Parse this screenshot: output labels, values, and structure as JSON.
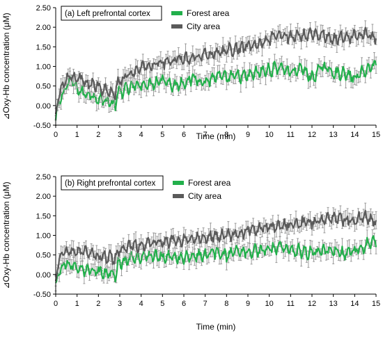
{
  "chart_data": [
    {
      "type": "line",
      "panel_label": "(a) Left prefrontal cortex",
      "xlabel": "Time (min)",
      "ylabel": "⊿Oxy-Hb concentration (μM)",
      "xlim": [
        0,
        15
      ],
      "ylim": [
        -0.5,
        2.5
      ],
      "x_ticks": [
        "0",
        "1",
        "2",
        "3",
        "4",
        "5",
        "6",
        "7",
        "8",
        "9",
        "10",
        "11",
        "12",
        "13",
        "14",
        "15"
      ],
      "y_ticks": [
        "-0.50",
        "0.00",
        "0.50",
        "1.00",
        "1.50",
        "2.00",
        "2.50"
      ],
      "grid": false,
      "legend_position": "top-center",
      "error_bars": true,
      "series": [
        {
          "name": "Forest area",
          "color": "#22b04b",
          "error_color": "#9a9a9a",
          "x": [
            0,
            0.1,
            0.3,
            0.5,
            0.7,
            1.0,
            1.3,
            1.6,
            1.9,
            2.2,
            2.5,
            2.8,
            2.9,
            3.2,
            3.5,
            4.0,
            4.5,
            5.0,
            5.5,
            6.0,
            6.5,
            7.0,
            7.5,
            8.0,
            8.5,
            9.0,
            9.5,
            10.0,
            10.5,
            11.0,
            11.5,
            12.0,
            12.5,
            13.0,
            13.5,
            14.0,
            14.5,
            15.0
          ],
          "y": [
            -0.4,
            0.0,
            0.25,
            0.5,
            0.65,
            0.45,
            0.3,
            0.3,
            0.2,
            0.15,
            0.1,
            0.0,
            0.3,
            0.4,
            0.45,
            0.55,
            0.55,
            0.7,
            0.5,
            0.6,
            0.7,
            0.6,
            0.75,
            0.7,
            0.75,
            0.75,
            0.85,
            0.9,
            1.0,
            0.85,
            0.95,
            0.7,
            1.0,
            0.85,
            0.8,
            0.7,
            0.9,
            1.05
          ]
        },
        {
          "name": "City area",
          "color": "#5a5a5a",
          "error_color": "#9a9a9a",
          "x": [
            0,
            0.1,
            0.3,
            0.5,
            0.7,
            1.0,
            1.3,
            1.6,
            1.9,
            2.2,
            2.5,
            2.8,
            2.9,
            3.2,
            3.5,
            4.0,
            4.5,
            5.0,
            5.5,
            6.0,
            6.5,
            7.0,
            7.5,
            8.0,
            8.5,
            9.0,
            9.5,
            10.0,
            10.5,
            11.0,
            11.5,
            12.0,
            12.5,
            13.0,
            13.5,
            14.0,
            14.5,
            15.0
          ],
          "y": [
            -0.3,
            0.2,
            0.5,
            0.7,
            0.75,
            0.7,
            0.65,
            0.55,
            0.5,
            0.4,
            0.35,
            0.3,
            0.55,
            0.7,
            0.8,
            0.95,
            1.05,
            1.1,
            1.15,
            1.2,
            1.25,
            1.3,
            1.35,
            1.4,
            1.45,
            1.5,
            1.55,
            1.7,
            1.8,
            1.75,
            1.8,
            1.85,
            1.8,
            1.7,
            1.75,
            1.8,
            1.85,
            1.7
          ]
        }
      ]
    },
    {
      "type": "line",
      "panel_label": "(b) Right prefrontal cortex",
      "xlabel": "Time (min)",
      "ylabel": "⊿Oxy-Hb concentration (μM)",
      "xlim": [
        0,
        15
      ],
      "ylim": [
        -0.5,
        2.5
      ],
      "x_ticks": [
        "0",
        "1",
        "2",
        "3",
        "4",
        "5",
        "6",
        "7",
        "8",
        "9",
        "10",
        "11",
        "12",
        "13",
        "14",
        "15"
      ],
      "y_ticks": [
        "-0.50",
        "0.00",
        "0.50",
        "1.00",
        "1.50",
        "2.00",
        "2.50"
      ],
      "grid": false,
      "legend_position": "top-center",
      "error_bars": true,
      "series": [
        {
          "name": "Forest area",
          "color": "#22b04b",
          "error_color": "#9a9a9a",
          "x": [
            0,
            0.1,
            0.3,
            0.5,
            0.7,
            1.0,
            1.3,
            1.6,
            1.9,
            2.2,
            2.5,
            2.8,
            2.9,
            3.2,
            3.5,
            4.0,
            4.5,
            5.0,
            5.5,
            6.0,
            6.5,
            7.0,
            7.5,
            8.0,
            8.5,
            9.0,
            9.5,
            10.0,
            10.5,
            11.0,
            11.5,
            12.0,
            12.5,
            13.0,
            13.5,
            14.0,
            14.5,
            15.0
          ],
          "y": [
            -0.3,
            0.0,
            0.2,
            0.3,
            0.25,
            0.2,
            0.15,
            0.1,
            0.1,
            0.05,
            0.05,
            0.0,
            0.25,
            0.35,
            0.4,
            0.45,
            0.5,
            0.45,
            0.45,
            0.4,
            0.5,
            0.5,
            0.55,
            0.5,
            0.55,
            0.6,
            0.6,
            0.65,
            0.7,
            0.6,
            0.6,
            0.55,
            0.6,
            0.6,
            0.55,
            0.6,
            0.75,
            0.85
          ]
        },
        {
          "name": "City area",
          "color": "#5a5a5a",
          "error_color": "#9a9a9a",
          "x": [
            0,
            0.1,
            0.3,
            0.5,
            0.7,
            1.0,
            1.3,
            1.6,
            1.9,
            2.2,
            2.5,
            2.8,
            2.9,
            3.2,
            3.5,
            4.0,
            4.5,
            5.0,
            5.5,
            6.0,
            6.5,
            7.0,
            7.5,
            8.0,
            8.5,
            9.0,
            9.5,
            10.0,
            10.5,
            11.0,
            11.5,
            12.0,
            12.5,
            13.0,
            13.5,
            14.0,
            14.5,
            15.0
          ],
          "y": [
            -0.2,
            0.25,
            0.5,
            0.6,
            0.6,
            0.6,
            0.6,
            0.55,
            0.5,
            0.45,
            0.45,
            0.4,
            0.6,
            0.65,
            0.7,
            0.75,
            0.8,
            0.85,
            0.85,
            0.9,
            0.9,
            0.95,
            1.0,
            1.0,
            1.05,
            1.1,
            1.15,
            1.2,
            1.25,
            1.3,
            1.3,
            1.35,
            1.4,
            1.45,
            1.4,
            1.4,
            1.45,
            1.35
          ]
        }
      ]
    }
  ]
}
